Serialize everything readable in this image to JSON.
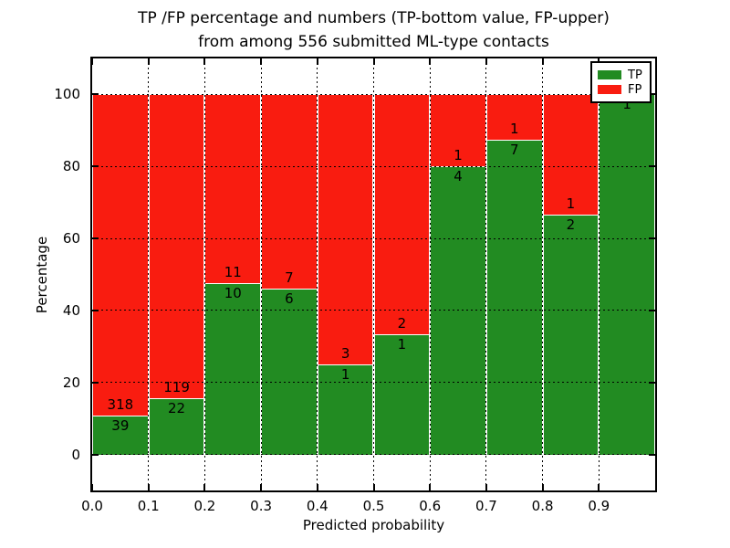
{
  "title": {
    "line1": "TP /FP percentage and numbers (TP-bottom value, FP-upper)",
    "line2": "from among 556 submitted ML-type contacts"
  },
  "chart_data": {
    "type": "bar",
    "stacked": true,
    "normalized": "each bin stack sums to 100%",
    "title": "TP /FP percentage and numbers (TP-bottom value, FP-upper) from among 556 submitted ML-type contacts",
    "total_contacts": 556,
    "xlabel": "Predicted probability",
    "ylabel": "Percentage",
    "bin_starts": [
      0.0,
      0.1,
      0.2,
      0.3,
      0.4,
      0.5,
      0.6,
      0.7,
      0.8,
      0.9
    ],
    "bin_width": 0.1,
    "x_tick_labels": [
      "0.0",
      "0.1",
      "0.2",
      "0.3",
      "0.4",
      "0.5",
      "0.6",
      "0.7",
      "0.8",
      "0.9"
    ],
    "y_ticks": [
      0,
      20,
      40,
      60,
      80,
      100
    ],
    "xlim": [
      0.0,
      1.0
    ],
    "ylim": [
      -10,
      110
    ],
    "grid": "dotted",
    "series": [
      {
        "name": "TP",
        "color": "#228B22",
        "counts": [
          39,
          22,
          10,
          6,
          1,
          1,
          4,
          7,
          2,
          1
        ],
        "percent_of_bin": [
          10.9,
          15.6,
          47.6,
          46.2,
          25.0,
          33.3,
          80.0,
          87.5,
          66.7,
          100.0
        ]
      },
      {
        "name": "FP",
        "color": "#F91C10",
        "counts": [
          318,
          119,
          11,
          7,
          3,
          2,
          1,
          1,
          1,
          0
        ],
        "percent_of_bin": [
          89.1,
          84.4,
          52.4,
          53.8,
          75.0,
          66.7,
          20.0,
          12.5,
          33.3,
          0.0
        ]
      }
    ],
    "legend": {
      "position": "upper right",
      "entries": [
        {
          "label": "TP",
          "color": "#228B22"
        },
        {
          "label": "FP",
          "color": "#F91C10"
        }
      ]
    }
  }
}
